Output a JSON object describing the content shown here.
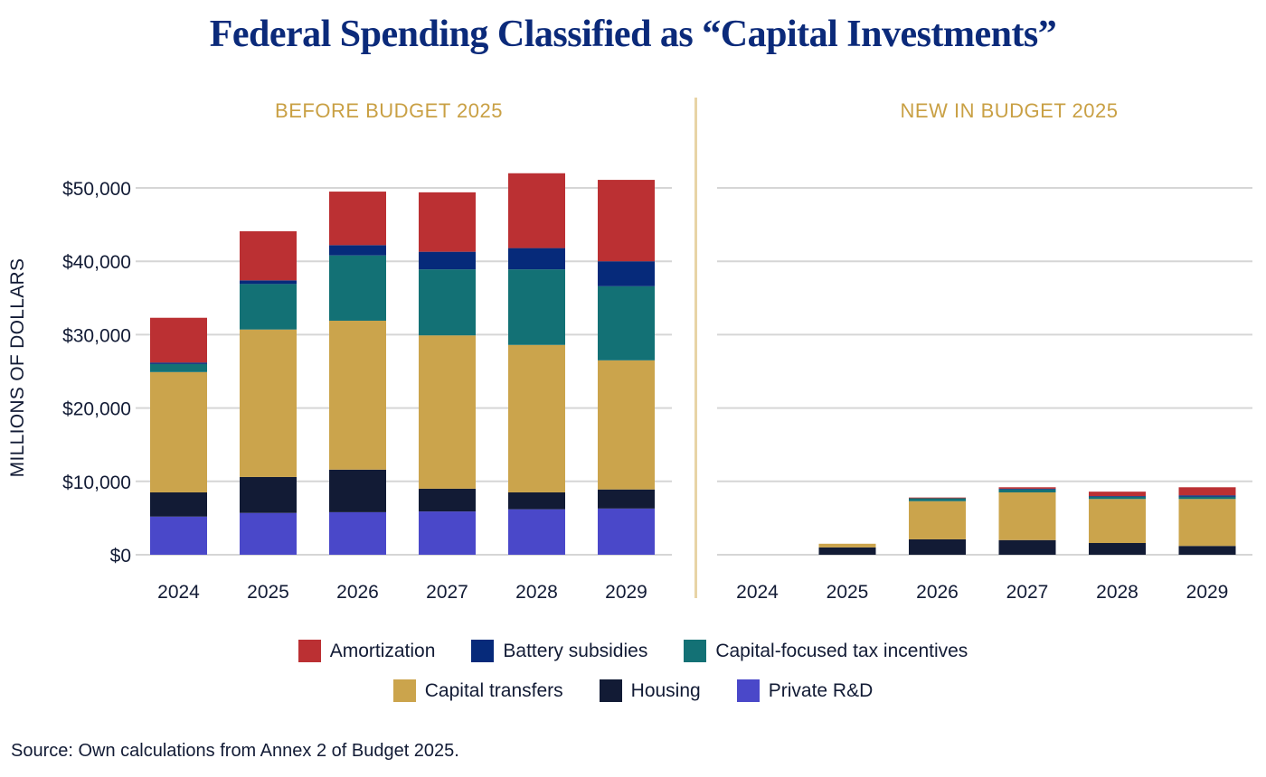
{
  "chart_data": {
    "type": "bar",
    "stacked": true,
    "title": "Federal Spending Classified as “Capital Investments”",
    "ylabel": "MILLIONS OF DOLLARS",
    "xlabel": "",
    "ylim": [
      0,
      50000
    ],
    "yticks": [
      {
        "value": 0,
        "label": "$0"
      },
      {
        "value": 10000,
        "label": "$10,000"
      },
      {
        "value": 20000,
        "label": "$20,000"
      },
      {
        "value": 30000,
        "label": "$30,000"
      },
      {
        "value": 40000,
        "label": "$40,000"
      },
      {
        "value": 50000,
        "label": "$50,000"
      }
    ],
    "grid": true,
    "legend_position": "bottom-center",
    "source": "Source: Own calculations from Annex 2 of Budget 2025.",
    "series_meta": [
      {
        "key": "private_rd",
        "name": "Private R&D",
        "color": "#4a48c9"
      },
      {
        "key": "housing",
        "name": "Housing",
        "color": "#121b35"
      },
      {
        "key": "capital_transfers",
        "name": "Capital transfers",
        "color": "#cba44c"
      },
      {
        "key": "tax_incentives",
        "name": "Capital-focused tax incentives",
        "color": "#137175"
      },
      {
        "key": "battery",
        "name": "Battery subsidies",
        "color": "#062a7a"
      },
      {
        "key": "amortization",
        "name": "Amortization",
        "color": "#bb3033"
      }
    ],
    "legend_rows": [
      [
        "amortization",
        "battery",
        "tax_incentives"
      ],
      [
        "capital_transfers",
        "housing",
        "private_rd"
      ]
    ],
    "panels": [
      {
        "title": "BEFORE BUDGET 2025",
        "categories": [
          "2024",
          "2025",
          "2026",
          "2027",
          "2028",
          "2029"
        ],
        "series": [
          {
            "name": "Private R&D",
            "values": [
              5200,
              5700,
              5800,
              5900,
              6200,
              6300
            ]
          },
          {
            "name": "Housing",
            "values": [
              3300,
              4900,
              5800,
              3100,
              2300,
              2600
            ]
          },
          {
            "name": "Capital transfers",
            "values": [
              16400,
              20100,
              20300,
              20900,
              20100,
              17600
            ]
          },
          {
            "name": "Capital-focused tax incentives",
            "values": [
              1100,
              6200,
              8900,
              9000,
              10300,
              10100
            ]
          },
          {
            "name": "Battery subsidies",
            "values": [
              200,
              500,
              1400,
              2400,
              2900,
              3400
            ]
          },
          {
            "name": "Amortization",
            "values": [
              6100,
              6700,
              7300,
              8100,
              10200,
              11100
            ]
          }
        ]
      },
      {
        "title": "NEW IN BUDGET 2025",
        "categories": [
          "2024",
          "2025",
          "2026",
          "2027",
          "2028",
          "2029"
        ],
        "series": [
          {
            "name": "Private R&D",
            "values": [
              0,
              0,
              0,
              0,
              0,
              0
            ]
          },
          {
            "name": "Housing",
            "values": [
              0,
              1000,
              2100,
              2000,
              1600,
              1200
            ]
          },
          {
            "name": "Capital transfers",
            "values": [
              0,
              500,
              5200,
              6500,
              6000,
              6400
            ]
          },
          {
            "name": "Capital-focused tax incentives",
            "values": [
              0,
              0,
              400,
              400,
              300,
              300
            ]
          },
          {
            "name": "Battery subsidies",
            "values": [
              0,
              0,
              0,
              100,
              100,
              200
            ]
          },
          {
            "name": "Amortization",
            "values": [
              0,
              0,
              100,
              200,
              600,
              1100
            ]
          }
        ]
      }
    ]
  }
}
